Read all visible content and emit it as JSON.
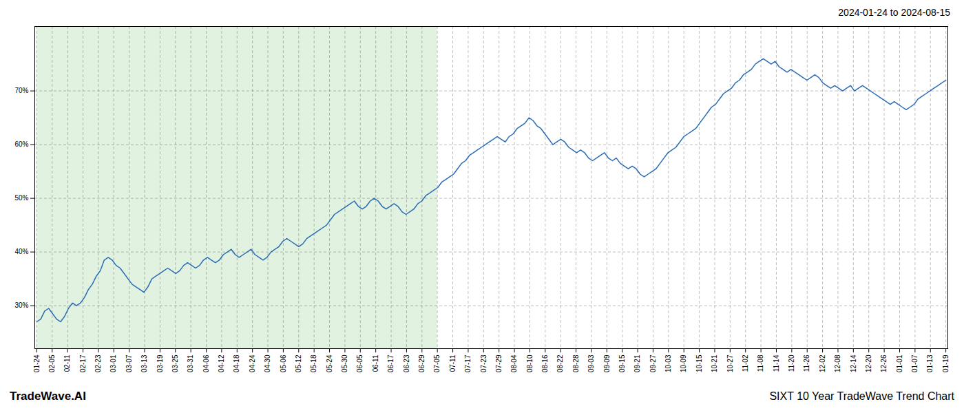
{
  "chart_data": {
    "type": "line",
    "title": "SIXT 10 Year TradeWave Trend Chart",
    "subtitle": "2024-01-24 to 2024-08-15",
    "annotations": [
      "TradeWave.AI"
    ],
    "color": "#2a6cb5",
    "grid": true,
    "spans": [
      {
        "x": [
          0,
          100.915254
        ],
        "color": "#d4ecd4"
      }
    ],
    "xlim": [
      -0.5,
      229.5
    ],
    "xticks": [
      {
        "value": 0,
        "label": "01-24"
      },
      {
        "value": 3.881356,
        "label": "02-05"
      },
      {
        "value": 7.762712,
        "label": "02-11"
      },
      {
        "value": 11.644068,
        "label": "02-17"
      },
      {
        "value": 15.525424,
        "label": "02-23"
      },
      {
        "value": 19.40678,
        "label": "03-01"
      },
      {
        "value": 23.288136,
        "label": "03-07"
      },
      {
        "value": 27.169492,
        "label": "03-13"
      },
      {
        "value": 31.050847,
        "label": "03-19"
      },
      {
        "value": 34.932203,
        "label": "03-25"
      },
      {
        "value": 38.813559,
        "label": "03-31"
      },
      {
        "value": 42.694915,
        "label": "04-06"
      },
      {
        "value": 46.576271,
        "label": "04-12"
      },
      {
        "value": 50.457627,
        "label": "04-18"
      },
      {
        "value": 54.338983,
        "label": "04-24"
      },
      {
        "value": 58.220339,
        "label": "04-30"
      },
      {
        "value": 62.101695,
        "label": "05-06"
      },
      {
        "value": 65.983051,
        "label": "05-12"
      },
      {
        "value": 69.864407,
        "label": "05-18"
      },
      {
        "value": 73.745763,
        "label": "05-24"
      },
      {
        "value": 77.627119,
        "label": "05-30"
      },
      {
        "value": 81.508475,
        "label": "06-05"
      },
      {
        "value": 85.389831,
        "label": "06-11"
      },
      {
        "value": 89.271186,
        "label": "06-17"
      },
      {
        "value": 93.152542,
        "label": "06-23"
      },
      {
        "value": 97.033898,
        "label": "06-29"
      },
      {
        "value": 100.915254,
        "label": "07-05"
      },
      {
        "value": 104.79661,
        "label": "07-11"
      },
      {
        "value": 108.677966,
        "label": "07-17"
      },
      {
        "value": 112.559322,
        "label": "07-23"
      },
      {
        "value": 116.440678,
        "label": "07-29"
      },
      {
        "value": 120.322034,
        "label": "08-04"
      },
      {
        "value": 124.20339,
        "label": "08-10"
      },
      {
        "value": 128.084746,
        "label": "08-16"
      },
      {
        "value": 131.966102,
        "label": "08-22"
      },
      {
        "value": 135.847458,
        "label": "08-28"
      },
      {
        "value": 139.728814,
        "label": "09-03"
      },
      {
        "value": 143.610169,
        "label": "09-09"
      },
      {
        "value": 147.491525,
        "label": "09-15"
      },
      {
        "value": 151.372881,
        "label": "09-21"
      },
      {
        "value": 155.254237,
        "label": "09-27"
      },
      {
        "value": 159.135593,
        "label": "10-03"
      },
      {
        "value": 163.016949,
        "label": "10-09"
      },
      {
        "value": 166.898305,
        "label": "10-15"
      },
      {
        "value": 170.779661,
        "label": "10-21"
      },
      {
        "value": 174.661017,
        "label": "10-27"
      },
      {
        "value": 178.542373,
        "label": "11-02"
      },
      {
        "value": 182.423729,
        "label": "11-08"
      },
      {
        "value": 186.305085,
        "label": "11-14"
      },
      {
        "value": 190.186441,
        "label": "11-20"
      },
      {
        "value": 194.067797,
        "label": "11-26"
      },
      {
        "value": 197.949153,
        "label": "12-02"
      },
      {
        "value": 201.830508,
        "label": "12-08"
      },
      {
        "value": 205.711864,
        "label": "12-14"
      },
      {
        "value": 209.59322,
        "label": "12-20"
      },
      {
        "value": 213.474576,
        "label": "12-26"
      },
      {
        "value": 217.355932,
        "label": "01-01"
      },
      {
        "value": 221.237288,
        "label": "01-07"
      },
      {
        "value": 225.118644,
        "label": "01-13"
      },
      {
        "value": 229,
        "label": "01-19"
      }
    ],
    "ylim": [
      22,
      82
    ],
    "yticks": [
      {
        "value": 30,
        "label": "30%"
      },
      {
        "value": 40,
        "label": "40%"
      },
      {
        "value": 50,
        "label": "50%"
      },
      {
        "value": 60,
        "label": "60%"
      },
      {
        "value": 70,
        "label": "70%"
      }
    ],
    "values": [
      27.0,
      27.5,
      29.0,
      29.5,
      28.5,
      27.5,
      27.0,
      28.0,
      29.5,
      30.5,
      30.0,
      30.5,
      31.5,
      33.0,
      34.0,
      35.5,
      36.5,
      38.5,
      39.0,
      38.5,
      37.5,
      37.0,
      36.0,
      35.0,
      34.0,
      33.5,
      33.0,
      32.5,
      33.5,
      35.0,
      35.5,
      36.0,
      36.5,
      37.0,
      36.5,
      36.0,
      36.5,
      37.5,
      38.0,
      37.5,
      37.0,
      37.5,
      38.5,
      39.0,
      38.5,
      38.0,
      38.5,
      39.5,
      40.0,
      40.5,
      39.5,
      39.0,
      39.5,
      40.0,
      40.5,
      39.5,
      39.0,
      38.5,
      39.0,
      40.0,
      40.5,
      41.0,
      42.0,
      42.5,
      42.0,
      41.5,
      41.0,
      41.5,
      42.5,
      43.0,
      43.5,
      44.0,
      44.5,
      45.0,
      46.0,
      47.0,
      47.5,
      48.0,
      48.5,
      49.0,
      49.5,
      48.5,
      48.0,
      48.5,
      49.5,
      50.0,
      49.5,
      48.5,
      48.0,
      48.5,
      49.0,
      48.5,
      47.5,
      47.0,
      47.5,
      48.0,
      49.0,
      49.5,
      50.5,
      51.0,
      51.5,
      52.0,
      53.0,
      53.5,
      54.0,
      54.5,
      55.5,
      56.5,
      57.0,
      58.0,
      58.5,
      59.0,
      59.5,
      60.0,
      60.5,
      61.0,
      61.5,
      61.0,
      60.5,
      61.5,
      62.0,
      63.0,
      63.5,
      64.0,
      65.0,
      64.5,
      63.5,
      63.0,
      62.0,
      61.0,
      60.0,
      60.5,
      61.0,
      60.5,
      59.5,
      59.0,
      58.5,
      59.0,
      58.5,
      57.5,
      57.0,
      57.5,
      58.0,
      58.5,
      57.5,
      57.0,
      57.5,
      56.5,
      56.0,
      55.5,
      56.0,
      55.5,
      54.5,
      54.0,
      54.5,
      55.0,
      55.5,
      56.5,
      57.5,
      58.5,
      59.0,
      59.5,
      60.5,
      61.5,
      62.0,
      62.5,
      63.0,
      64.0,
      65.0,
      66.0,
      67.0,
      67.5,
      68.5,
      69.5,
      70.0,
      70.5,
      71.5,
      72.0,
      73.0,
      73.5,
      74.0,
      75.0,
      75.5,
      76.0,
      75.5,
      75.0,
      75.5,
      74.5,
      74.0,
      73.5,
      74.0,
      73.5,
      73.0,
      72.5,
      72.0,
      72.5,
      73.0,
      72.5,
      71.5,
      71.0,
      70.5,
      71.0,
      70.5,
      70.0,
      70.5,
      71.0,
      70.0,
      70.5,
      71.0,
      70.5,
      70.0,
      69.5,
      69.0,
      68.5,
      68.0,
      67.5,
      68.0,
      67.5,
      67.0,
      66.5,
      67.0,
      67.5,
      68.5,
      69.0,
      69.5,
      70.0,
      70.5,
      71.0,
      71.5,
      72.0
    ]
  }
}
